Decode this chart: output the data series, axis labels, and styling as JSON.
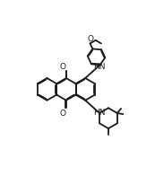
{
  "bg_color": "#ffffff",
  "line_color": "#1a1a1a",
  "line_width": 1.3,
  "font_size": 6.5,
  "fig_width": 1.73,
  "fig_height": 2.07,
  "dpi": 100,
  "xlim": [
    -1.0,
    9.0
  ],
  "ylim": [
    -1.5,
    11.5
  ]
}
